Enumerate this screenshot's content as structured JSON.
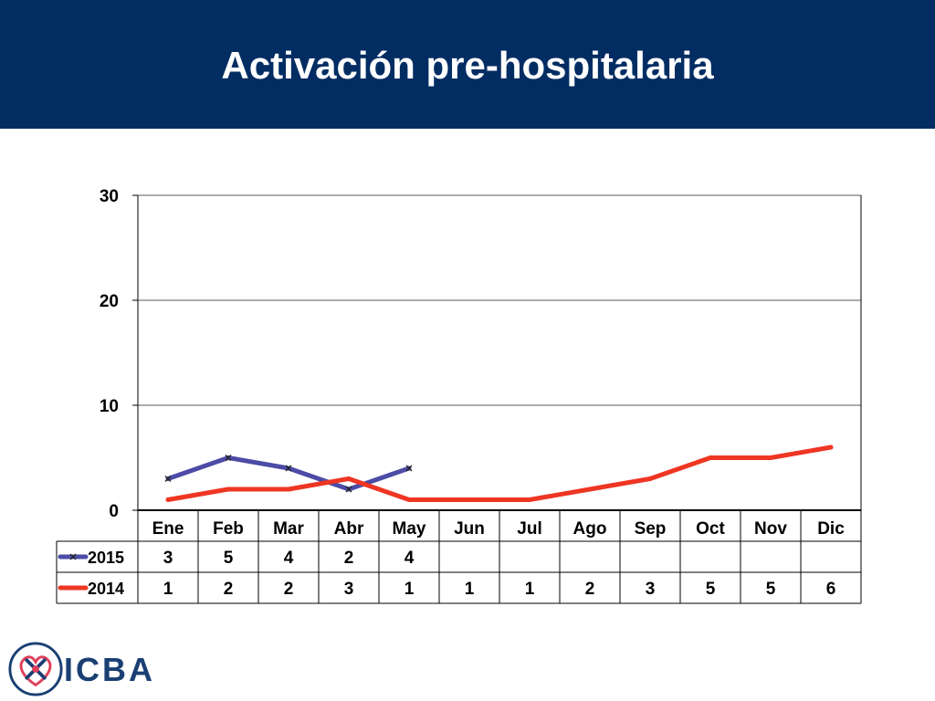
{
  "header": {
    "title": "Activación pre-hospitalaria"
  },
  "logo": {
    "text": "ICBA"
  },
  "colors": {
    "header_bg": "#022d63",
    "series_2015": "#4c4ca6",
    "series_2014": "#ee3623"
  },
  "chart_data": {
    "type": "line",
    "title": "",
    "xlabel": "",
    "ylabel": "",
    "categories": [
      "Ene",
      "Feb",
      "Mar",
      "Abr",
      "May",
      "Jun",
      "Jul",
      "Ago",
      "Sep",
      "Oct",
      "Nov",
      "Dic"
    ],
    "ylim": [
      0,
      30
    ],
    "yticks": [
      0,
      10,
      20,
      30
    ],
    "grid": true,
    "legend": "data-table-left",
    "series": [
      {
        "name": "2015",
        "color": "#4c4ca6",
        "marker": "x",
        "values": [
          3,
          5,
          4,
          2,
          4,
          null,
          null,
          null,
          null,
          null,
          null,
          null
        ]
      },
      {
        "name": "2014",
        "color": "#ee3623",
        "marker": "none",
        "values": [
          1,
          2,
          2,
          3,
          1,
          1,
          1,
          2,
          3,
          5,
          5,
          6
        ]
      }
    ]
  }
}
